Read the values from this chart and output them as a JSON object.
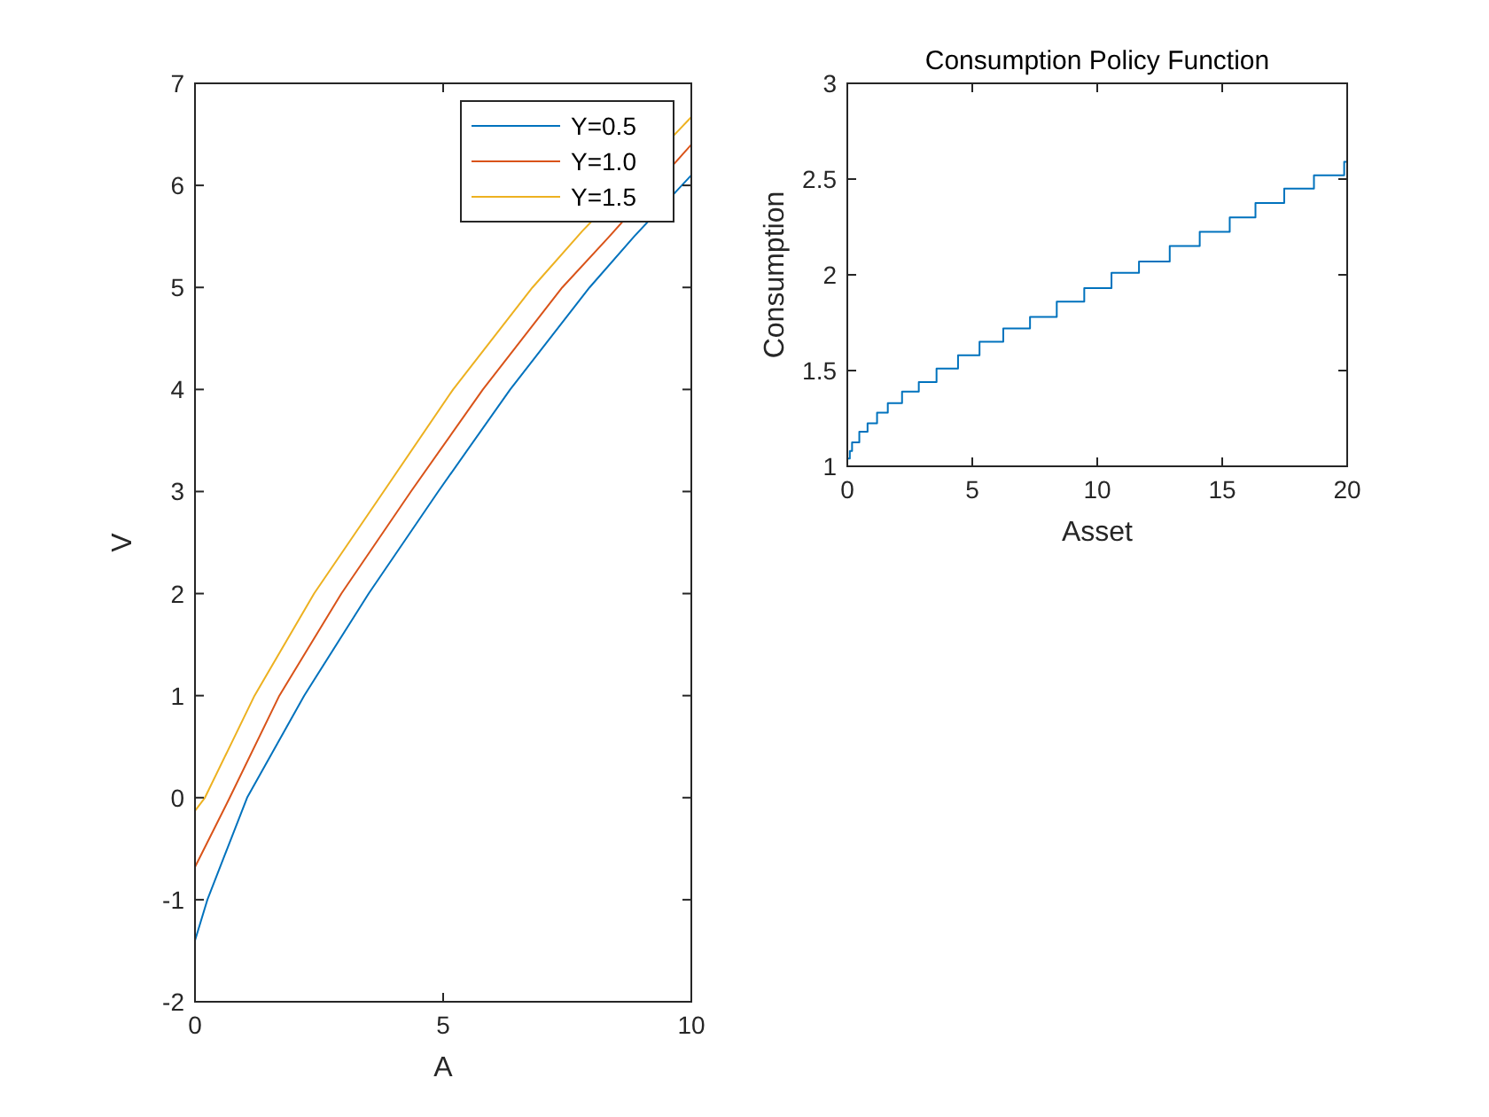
{
  "chart_data": [
    {
      "type": "line",
      "xlabel": "A",
      "ylabel": "V",
      "xlim": [
        0,
        10
      ],
      "ylim": [
        -2,
        7
      ],
      "xticks": [
        0,
        5,
        10
      ],
      "yticks": [
        -2,
        -1,
        0,
        1,
        2,
        3,
        4,
        5,
        6,
        7
      ],
      "grid": false,
      "legend": "top right",
      "series": [
        {
          "name": "Y=0.5",
          "color": "#0072bd",
          "x": [
            0,
            0.25,
            1.05,
            2.2,
            3.5,
            4.9,
            6.35,
            7.95,
            8.85,
            10
          ],
          "values": [
            -1.4,
            -1,
            0,
            1,
            2,
            3,
            4,
            5,
            5.5,
            6.1
          ]
        },
        {
          "name": "Y=1.0",
          "color": "#d95319",
          "x": [
            0,
            0.7,
            1.7,
            2.95,
            4.35,
            5.8,
            7.4,
            8.35,
            10
          ],
          "values": [
            -0.68,
            0,
            1,
            2,
            3,
            4,
            5,
            5.5,
            6.4
          ]
        },
        {
          "name": "Y=1.5",
          "color": "#edb120",
          "x": [
            0,
            0.2,
            1.2,
            2.4,
            3.8,
            5.2,
            6.8,
            7.8,
            10
          ],
          "values": [
            -0.13,
            0,
            1,
            2,
            3,
            4,
            5,
            5.55,
            6.67
          ]
        }
      ]
    },
    {
      "type": "step",
      "title": "Consumption Policy Function",
      "xlabel": "Asset",
      "ylabel": "Consumption",
      "xlim": [
        0,
        20
      ],
      "ylim": [
        1,
        3
      ],
      "xticks": [
        0,
        5,
        10,
        15,
        20
      ],
      "yticks": [
        1,
        1.5,
        2,
        2.5,
        3
      ],
      "grid": false,
      "legend": false,
      "series": [
        {
          "color": "#0072bd",
          "x": [
            0,
            0.1,
            0.19,
            0.48,
            0.81,
            1.19,
            1.62,
            2.19,
            2.86,
            3.57,
            4.43,
            5.29,
            6.24,
            7.31,
            8.38,
            9.48,
            10.57,
            11.67,
            12.9,
            14.1,
            15.3,
            16.33,
            17.48,
            18.67,
            19.88,
            20
          ],
          "values": [
            1.04,
            1.08,
            1.125,
            1.18,
            1.225,
            1.28,
            1.33,
            1.39,
            1.44,
            1.51,
            1.58,
            1.65,
            1.72,
            1.78,
            1.86,
            1.93,
            2.01,
            2.07,
            2.15,
            2.225,
            2.3,
            2.375,
            2.45,
            2.52,
            2.59,
            2.6
          ]
        }
      ]
    }
  ]
}
